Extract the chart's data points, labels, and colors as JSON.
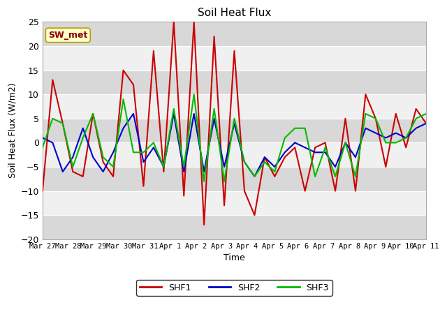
{
  "title": "Soil Heat Flux",
  "ylabel": "Soil Heat Flux (W/m2)",
  "xlabel": "Time",
  "ylim": [
    -20,
    25
  ],
  "fig_facecolor": "#ffffff",
  "plot_facecolor": "#ffffff",
  "annotation_text": "SW_met",
  "annotation_bg": "#ffffcc",
  "annotation_fg": "#8b0000",
  "annotation_border": "#b8a000",
  "x_ticks": [
    "Mar 27",
    "Mar 28",
    "Mar 29",
    "Mar 30",
    "Mar 31",
    "Apr 1",
    "Apr 2",
    "Apr 3",
    "Apr 4",
    "Apr 5",
    "Apr 6",
    "Apr 7",
    "Apr 8",
    "Apr 9",
    "Apr 10",
    "Apr 11"
  ],
  "series_colors": {
    "SHF1": "#cc0000",
    "SHF2": "#0000cc",
    "SHF3": "#00bb00"
  },
  "linewidth": 1.5,
  "band_color_light": "#f0f0f0",
  "band_color_dark": "#d8d8d8",
  "shf1": [
    -10,
    13,
    4,
    -6,
    -7,
    6,
    -4,
    -7,
    15,
    12,
    -9,
    19,
    -6,
    25,
    -11,
    25,
    -17,
    22,
    -13,
    19,
    -10,
    -15,
    -3,
    -7,
    -3,
    -1,
    -10,
    -1,
    0,
    -10,
    5,
    -10,
    10,
    5,
    -5,
    6,
    -1,
    7,
    4
  ],
  "shf2": [
    1,
    0,
    -6,
    -3,
    3,
    -3,
    -6,
    -2,
    3,
    6,
    -4,
    -1,
    -5,
    6,
    -6,
    6,
    -6,
    5,
    -5,
    4,
    -4,
    -7,
    -3,
    -5,
    -2,
    0,
    -1,
    -2,
    -2,
    -5,
    0,
    -3,
    3,
    2,
    1,
    2,
    1,
    3,
    4
  ],
  "shf3": [
    -1,
    5,
    4,
    -5,
    1,
    6,
    -3,
    -5,
    9,
    -2,
    -2,
    0,
    -5,
    7,
    -5,
    10,
    -8,
    7,
    -8,
    5,
    -4,
    -7,
    -4,
    -6,
    1,
    3,
    3,
    -7,
    -1,
    -7,
    0,
    -7,
    6,
    5,
    0,
    0,
    1,
    5,
    6
  ],
  "yticks": [
    -20,
    -15,
    -10,
    -5,
    0,
    5,
    10,
    15,
    20,
    25
  ]
}
